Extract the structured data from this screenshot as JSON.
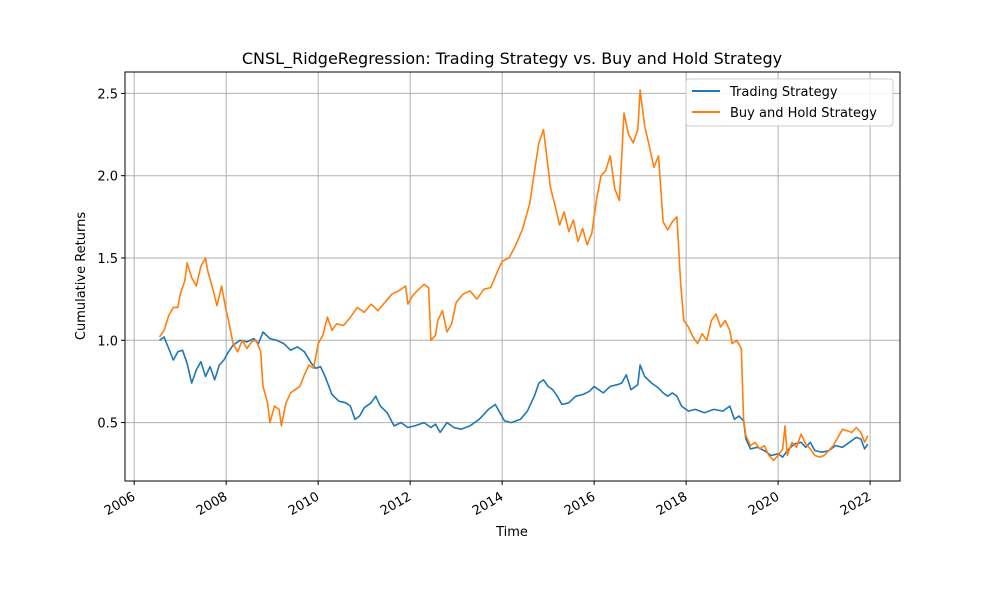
{
  "chart_data": {
    "type": "line",
    "title": "CNSL_RidgeRegression: Trading Strategy vs. Buy and Hold Strategy",
    "xlabel": "Time",
    "ylabel": "Cumulative Returns",
    "xlim": [
      2005.8,
      2022.65
    ],
    "ylim": [
      0.145,
      2.63
    ],
    "x_ticks": [
      2006,
      2008,
      2010,
      2012,
      2014,
      2016,
      2018,
      2020,
      2022
    ],
    "x_tick_labels": [
      "2006",
      "2008",
      "2010",
      "2012",
      "2014",
      "2016",
      "2018",
      "2020",
      "2022"
    ],
    "y_ticks": [
      0.5,
      1.0,
      1.5,
      2.0,
      2.5
    ],
    "y_tick_labels": [
      "0.5",
      "1.0",
      "1.5",
      "2.0",
      "2.5"
    ],
    "grid": true,
    "legend_position": "top-right",
    "series": [
      {
        "name": "Trading Strategy",
        "color": "#1f77b4",
        "points": [
          [
            2006.55,
            1.0
          ],
          [
            2006.65,
            1.02
          ],
          [
            2006.75,
            0.95
          ],
          [
            2006.85,
            0.88
          ],
          [
            2006.95,
            0.93
          ],
          [
            2007.05,
            0.94
          ],
          [
            2007.15,
            0.86
          ],
          [
            2007.25,
            0.74
          ],
          [
            2007.35,
            0.82
          ],
          [
            2007.45,
            0.87
          ],
          [
            2007.55,
            0.78
          ],
          [
            2007.65,
            0.84
          ],
          [
            2007.75,
            0.76
          ],
          [
            2007.85,
            0.85
          ],
          [
            2007.95,
            0.88
          ],
          [
            2008.05,
            0.93
          ],
          [
            2008.15,
            0.97
          ],
          [
            2008.3,
            1.0
          ],
          [
            2008.45,
            0.99
          ],
          [
            2008.6,
            1.01
          ],
          [
            2008.7,
            0.98
          ],
          [
            2008.8,
            1.05
          ],
          [
            2008.95,
            1.01
          ],
          [
            2009.1,
            1.0
          ],
          [
            2009.25,
            0.98
          ],
          [
            2009.4,
            0.94
          ],
          [
            2009.55,
            0.96
          ],
          [
            2009.7,
            0.93
          ],
          [
            2009.85,
            0.86
          ],
          [
            2009.95,
            0.83
          ],
          [
            2010.05,
            0.84
          ],
          [
            2010.15,
            0.78
          ],
          [
            2010.3,
            0.67
          ],
          [
            2010.45,
            0.63
          ],
          [
            2010.6,
            0.62
          ],
          [
            2010.7,
            0.6
          ],
          [
            2010.8,
            0.52
          ],
          [
            2010.9,
            0.54
          ],
          [
            2011.0,
            0.59
          ],
          [
            2011.15,
            0.62
          ],
          [
            2011.25,
            0.66
          ],
          [
            2011.35,
            0.6
          ],
          [
            2011.5,
            0.56
          ],
          [
            2011.65,
            0.48
          ],
          [
            2011.8,
            0.5
          ],
          [
            2011.95,
            0.47
          ],
          [
            2012.1,
            0.48
          ],
          [
            2012.3,
            0.5
          ],
          [
            2012.45,
            0.47
          ],
          [
            2012.55,
            0.49
          ],
          [
            2012.65,
            0.44
          ],
          [
            2012.8,
            0.5
          ],
          [
            2012.95,
            0.47
          ],
          [
            2013.1,
            0.46
          ],
          [
            2013.3,
            0.48
          ],
          [
            2013.5,
            0.52
          ],
          [
            2013.7,
            0.58
          ],
          [
            2013.85,
            0.61
          ],
          [
            2013.95,
            0.56
          ],
          [
            2014.05,
            0.51
          ],
          [
            2014.2,
            0.5
          ],
          [
            2014.4,
            0.52
          ],
          [
            2014.55,
            0.57
          ],
          [
            2014.7,
            0.66
          ],
          [
            2014.8,
            0.74
          ],
          [
            2014.9,
            0.76
          ],
          [
            2015.0,
            0.72
          ],
          [
            2015.1,
            0.7
          ],
          [
            2015.2,
            0.66
          ],
          [
            2015.3,
            0.61
          ],
          [
            2015.45,
            0.62
          ],
          [
            2015.6,
            0.66
          ],
          [
            2015.75,
            0.67
          ],
          [
            2015.9,
            0.69
          ],
          [
            2016.0,
            0.72
          ],
          [
            2016.1,
            0.7
          ],
          [
            2016.2,
            0.68
          ],
          [
            2016.35,
            0.72
          ],
          [
            2016.5,
            0.73
          ],
          [
            2016.6,
            0.74
          ],
          [
            2016.7,
            0.79
          ],
          [
            2016.8,
            0.7
          ],
          [
            2016.95,
            0.73
          ],
          [
            2017.0,
            0.85
          ],
          [
            2017.1,
            0.78
          ],
          [
            2017.25,
            0.74
          ],
          [
            2017.4,
            0.71
          ],
          [
            2017.5,
            0.68
          ],
          [
            2017.6,
            0.66
          ],
          [
            2017.7,
            0.68
          ],
          [
            2017.8,
            0.66
          ],
          [
            2017.9,
            0.6
          ],
          [
            2018.05,
            0.57
          ],
          [
            2018.2,
            0.58
          ],
          [
            2018.4,
            0.56
          ],
          [
            2018.6,
            0.58
          ],
          [
            2018.8,
            0.57
          ],
          [
            2018.95,
            0.6
          ],
          [
            2019.05,
            0.52
          ],
          [
            2019.15,
            0.54
          ],
          [
            2019.25,
            0.51
          ],
          [
            2019.3,
            0.4
          ],
          [
            2019.4,
            0.34
          ],
          [
            2019.55,
            0.35
          ],
          [
            2019.7,
            0.33
          ],
          [
            2019.85,
            0.3
          ],
          [
            2020.0,
            0.31
          ],
          [
            2020.1,
            0.29
          ],
          [
            2020.2,
            0.33
          ],
          [
            2020.35,
            0.37
          ],
          [
            2020.5,
            0.38
          ],
          [
            2020.6,
            0.35
          ],
          [
            2020.7,
            0.38
          ],
          [
            2020.8,
            0.33
          ],
          [
            2020.95,
            0.32
          ],
          [
            2021.1,
            0.33
          ],
          [
            2021.25,
            0.36
          ],
          [
            2021.4,
            0.35
          ],
          [
            2021.55,
            0.38
          ],
          [
            2021.7,
            0.41
          ],
          [
            2021.8,
            0.4
          ],
          [
            2021.88,
            0.34
          ],
          [
            2021.95,
            0.37
          ]
        ]
      },
      {
        "name": "Buy and Hold Strategy",
        "color": "#ff7f0e",
        "points": [
          [
            2006.55,
            1.02
          ],
          [
            2006.65,
            1.06
          ],
          [
            2006.75,
            1.15
          ],
          [
            2006.85,
            1.2
          ],
          [
            2006.95,
            1.2
          ],
          [
            2007.0,
            1.28
          ],
          [
            2007.1,
            1.36
          ],
          [
            2007.15,
            1.47
          ],
          [
            2007.25,
            1.38
          ],
          [
            2007.35,
            1.33
          ],
          [
            2007.45,
            1.45
          ],
          [
            2007.55,
            1.5
          ],
          [
            2007.6,
            1.42
          ],
          [
            2007.7,
            1.32
          ],
          [
            2007.8,
            1.21
          ],
          [
            2007.9,
            1.33
          ],
          [
            2008.0,
            1.18
          ],
          [
            2008.05,
            1.12
          ],
          [
            2008.15,
            0.98
          ],
          [
            2008.25,
            0.93
          ],
          [
            2008.35,
            1.0
          ],
          [
            2008.45,
            0.95
          ],
          [
            2008.55,
            0.99
          ],
          [
            2008.65,
            1.0
          ],
          [
            2008.75,
            0.93
          ],
          [
            2008.8,
            0.72
          ],
          [
            2008.9,
            0.62
          ],
          [
            2008.95,
            0.5
          ],
          [
            2009.05,
            0.6
          ],
          [
            2009.15,
            0.58
          ],
          [
            2009.2,
            0.48
          ],
          [
            2009.3,
            0.62
          ],
          [
            2009.4,
            0.68
          ],
          [
            2009.5,
            0.7
          ],
          [
            2009.6,
            0.72
          ],
          [
            2009.7,
            0.79
          ],
          [
            2009.8,
            0.85
          ],
          [
            2009.9,
            0.83
          ],
          [
            2010.0,
            0.98
          ],
          [
            2010.1,
            1.03
          ],
          [
            2010.2,
            1.14
          ],
          [
            2010.3,
            1.06
          ],
          [
            2010.4,
            1.1
          ],
          [
            2010.55,
            1.09
          ],
          [
            2010.7,
            1.14
          ],
          [
            2010.85,
            1.2
          ],
          [
            2011.0,
            1.17
          ],
          [
            2011.15,
            1.22
          ],
          [
            2011.3,
            1.18
          ],
          [
            2011.45,
            1.23
          ],
          [
            2011.6,
            1.28
          ],
          [
            2011.75,
            1.3
          ],
          [
            2011.9,
            1.33
          ],
          [
            2011.95,
            1.22
          ],
          [
            2012.05,
            1.27
          ],
          [
            2012.15,
            1.3
          ],
          [
            2012.3,
            1.34
          ],
          [
            2012.4,
            1.32
          ],
          [
            2012.45,
            1.0
          ],
          [
            2012.55,
            1.03
          ],
          [
            2012.6,
            1.12
          ],
          [
            2012.7,
            1.18
          ],
          [
            2012.8,
            1.05
          ],
          [
            2012.9,
            1.1
          ],
          [
            2013.0,
            1.23
          ],
          [
            2013.15,
            1.28
          ],
          [
            2013.3,
            1.3
          ],
          [
            2013.45,
            1.25
          ],
          [
            2013.6,
            1.31
          ],
          [
            2013.75,
            1.32
          ],
          [
            2013.9,
            1.42
          ],
          [
            2014.0,
            1.48
          ],
          [
            2014.15,
            1.5
          ],
          [
            2014.3,
            1.58
          ],
          [
            2014.45,
            1.68
          ],
          [
            2014.6,
            1.83
          ],
          [
            2014.7,
            2.02
          ],
          [
            2014.8,
            2.2
          ],
          [
            2014.9,
            2.28
          ],
          [
            2015.0,
            2.05
          ],
          [
            2015.05,
            1.93
          ],
          [
            2015.15,
            1.82
          ],
          [
            2015.25,
            1.7
          ],
          [
            2015.35,
            1.78
          ],
          [
            2015.45,
            1.66
          ],
          [
            2015.55,
            1.73
          ],
          [
            2015.65,
            1.6
          ],
          [
            2015.75,
            1.68
          ],
          [
            2015.85,
            1.58
          ],
          [
            2015.95,
            1.65
          ],
          [
            2016.05,
            1.85
          ],
          [
            2016.15,
            2.0
          ],
          [
            2016.25,
            2.03
          ],
          [
            2016.35,
            2.12
          ],
          [
            2016.45,
            1.92
          ],
          [
            2016.55,
            1.85
          ],
          [
            2016.65,
            2.38
          ],
          [
            2016.75,
            2.25
          ],
          [
            2016.85,
            2.2
          ],
          [
            2016.95,
            2.28
          ],
          [
            2017.0,
            2.52
          ],
          [
            2017.1,
            2.3
          ],
          [
            2017.2,
            2.18
          ],
          [
            2017.3,
            2.05
          ],
          [
            2017.4,
            2.12
          ],
          [
            2017.5,
            1.72
          ],
          [
            2017.6,
            1.67
          ],
          [
            2017.7,
            1.72
          ],
          [
            2017.8,
            1.75
          ],
          [
            2017.88,
            1.35
          ],
          [
            2017.95,
            1.12
          ],
          [
            2018.05,
            1.08
          ],
          [
            2018.15,
            1.02
          ],
          [
            2018.25,
            0.98
          ],
          [
            2018.35,
            1.04
          ],
          [
            2018.45,
            1.0
          ],
          [
            2018.55,
            1.12
          ],
          [
            2018.65,
            1.16
          ],
          [
            2018.75,
            1.08
          ],
          [
            2018.85,
            1.12
          ],
          [
            2018.95,
            1.06
          ],
          [
            2019.0,
            0.98
          ],
          [
            2019.1,
            1.0
          ],
          [
            2019.2,
            0.95
          ],
          [
            2019.25,
            0.52
          ],
          [
            2019.3,
            0.42
          ],
          [
            2019.4,
            0.36
          ],
          [
            2019.5,
            0.38
          ],
          [
            2019.6,
            0.34
          ],
          [
            2019.7,
            0.36
          ],
          [
            2019.8,
            0.3
          ],
          [
            2019.9,
            0.27
          ],
          [
            2020.0,
            0.3
          ],
          [
            2020.1,
            0.34
          ],
          [
            2020.15,
            0.48
          ],
          [
            2020.2,
            0.3
          ],
          [
            2020.3,
            0.38
          ],
          [
            2020.4,
            0.35
          ],
          [
            2020.5,
            0.43
          ],
          [
            2020.6,
            0.37
          ],
          [
            2020.7,
            0.34
          ],
          [
            2020.8,
            0.3
          ],
          [
            2020.9,
            0.29
          ],
          [
            2021.0,
            0.3
          ],
          [
            2021.1,
            0.33
          ],
          [
            2021.2,
            0.36
          ],
          [
            2021.3,
            0.41
          ],
          [
            2021.4,
            0.46
          ],
          [
            2021.5,
            0.45
          ],
          [
            2021.6,
            0.44
          ],
          [
            2021.7,
            0.47
          ],
          [
            2021.8,
            0.44
          ],
          [
            2021.88,
            0.38
          ],
          [
            2021.95,
            0.42
          ]
        ]
      }
    ]
  }
}
